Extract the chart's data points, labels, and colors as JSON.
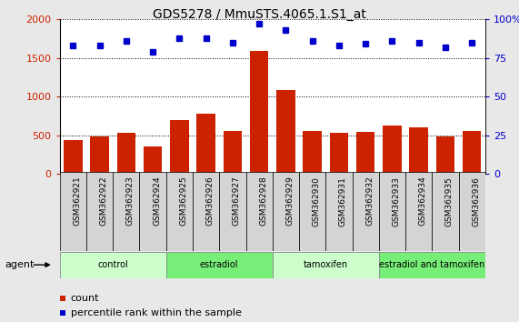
{
  "title": "GDS5278 / MmuSTS.4065.1.S1_at",
  "samples": [
    "GSM362921",
    "GSM362922",
    "GSM362923",
    "GSM362924",
    "GSM362925",
    "GSM362926",
    "GSM362927",
    "GSM362928",
    "GSM362929",
    "GSM362930",
    "GSM362931",
    "GSM362932",
    "GSM362933",
    "GSM362934",
    "GSM362935",
    "GSM362936"
  ],
  "counts": [
    440,
    480,
    530,
    360,
    700,
    780,
    550,
    1590,
    1080,
    560,
    530,
    540,
    620,
    600,
    480,
    560
  ],
  "percentile_ranks": [
    83,
    83,
    86,
    79,
    88,
    88,
    85,
    97,
    93,
    86,
    83,
    84,
    86,
    85,
    82,
    85
  ],
  "groups": [
    {
      "label": "control",
      "start": 0,
      "end": 4,
      "color": "#ccffcc"
    },
    {
      "label": "estradiol",
      "start": 4,
      "end": 8,
      "color": "#77ee77"
    },
    {
      "label": "tamoxifen",
      "start": 8,
      "end": 12,
      "color": "#ccffcc"
    },
    {
      "label": "estradiol and tamoxifen",
      "start": 12,
      "end": 16,
      "color": "#77ee77"
    }
  ],
  "bar_color": "#cc2200",
  "dot_color": "#0000cc",
  "ylim_left": [
    0,
    2000
  ],
  "ylim_right": [
    0,
    100
  ],
  "yticks_left": [
    0,
    500,
    1000,
    1500,
    2000
  ],
  "yticks_right": [
    0,
    25,
    50,
    75,
    100
  ],
  "background_color": "#e8e8e8",
  "plot_bg_color": "#ffffff",
  "title_fontsize": 10,
  "tick_fontsize": 6.5,
  "label_fontsize": 8,
  "legend_count_label": "count",
  "legend_pct_label": "percentile rank within the sample",
  "agent_label": "agent"
}
